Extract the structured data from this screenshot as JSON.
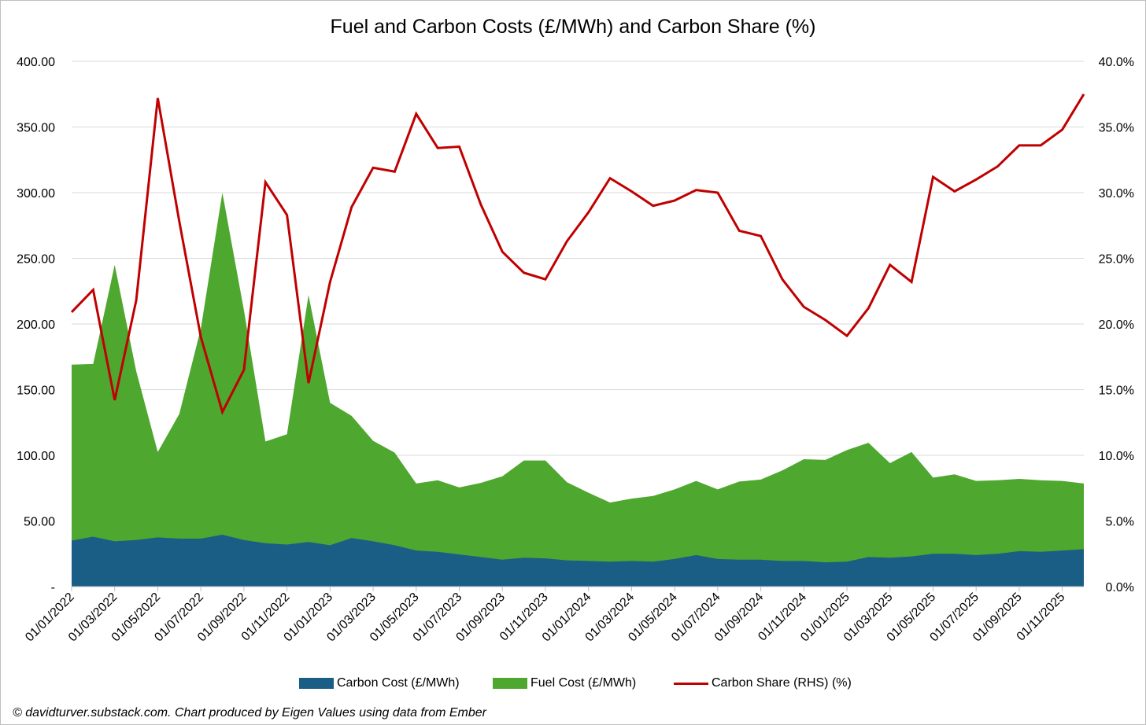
{
  "chart_data": {
    "type": "area",
    "title": "Fuel and Carbon Costs (£/MWh) and Carbon Share (%)",
    "credit": "© davidturver.substack.com. Chart produced by Eigen Values using data from Ember",
    "x": [
      "01/01/2022",
      "01/02/2022",
      "01/03/2022",
      "01/04/2022",
      "01/05/2022",
      "01/06/2022",
      "01/07/2022",
      "01/08/2022",
      "01/09/2022",
      "01/10/2022",
      "01/11/2022",
      "01/12/2022",
      "01/01/2023",
      "01/02/2023",
      "01/03/2023",
      "01/04/2023",
      "01/05/2023",
      "01/06/2023",
      "01/07/2023",
      "01/08/2023",
      "01/09/2023",
      "01/10/2023",
      "01/11/2023",
      "01/12/2023",
      "01/01/2024",
      "01/02/2024",
      "01/03/2024",
      "01/04/2024",
      "01/05/2024",
      "01/06/2024",
      "01/07/2024",
      "01/08/2024",
      "01/09/2024",
      "01/10/2024",
      "01/11/2024",
      "01/12/2024",
      "01/01/2025",
      "01/02/2025",
      "01/03/2025",
      "01/04/2025",
      "01/05/2025",
      "01/06/2025",
      "01/07/2025",
      "01/08/2025",
      "01/09/2025",
      "01/10/2025",
      "01/11/2025",
      "01/12/2025"
    ],
    "x_tick_labels": [
      "01/01/2022",
      "01/03/2022",
      "01/05/2022",
      "01/07/2022",
      "01/09/2022",
      "01/11/2022",
      "01/01/2023",
      "01/03/2023",
      "01/05/2023",
      "01/07/2023",
      "01/09/2023",
      "01/11/2023",
      "01/01/2024",
      "01/03/2024",
      "01/05/2024",
      "01/07/2024",
      "01/09/2024",
      "01/11/2024",
      "01/01/2025",
      "01/03/2025",
      "01/05/2025",
      "01/07/2025",
      "01/09/2025",
      "01/11/2025"
    ],
    "series": [
      {
        "name": "Carbon Cost (£/MWh)",
        "axis": "left",
        "kind": "stacked-area",
        "color": "#1a5e86",
        "values": [
          35,
          38,
          34.5,
          35.5,
          37.5,
          36.5,
          36.5,
          39.5,
          35.5,
          33,
          32,
          34,
          31.5,
          37,
          34.5,
          31.5,
          27.5,
          26.5,
          24.5,
          22.5,
          20.5,
          22,
          21.5,
          20,
          19.5,
          19,
          19.5,
          19,
          21,
          24,
          21,
          20.5,
          20.5,
          19.5,
          19.5,
          18.5,
          19,
          22.5,
          22,
          23,
          25,
          25,
          24,
          25,
          27,
          26.5,
          27.5,
          28.5
        ]
      },
      {
        "name": "Fuel Cost (£/MWh)",
        "axis": "left",
        "kind": "stacked-area",
        "color": "#4ea72e",
        "values": [
          134,
          131.5,
          210.5,
          128.5,
          65,
          95,
          160,
          260.5,
          175,
          77.5,
          84,
          188,
          108.5,
          93,
          76.5,
          70.5,
          51,
          54.5,
          51,
          56.5,
          63.5,
          74,
          74.5,
          59.5,
          52,
          45,
          47.5,
          50,
          53,
          56.5,
          53,
          59.5,
          61,
          69,
          77.5,
          78,
          85,
          87,
          72,
          79.5,
          58,
          60.5,
          56.5,
          56,
          55,
          54.5,
          53,
          50
        ]
      },
      {
        "name": "Carbon Share (RHS) (%)",
        "axis": "right",
        "kind": "line",
        "color": "#c00000",
        "values": [
          20.9,
          22.6,
          14.2,
          21.8,
          37.2,
          27.8,
          19,
          13.3,
          16.5,
          30.8,
          28.3,
          15.5,
          23.2,
          28.9,
          31.9,
          31.6,
          36,
          33.4,
          33.5,
          29.1,
          25.5,
          23.9,
          23.4,
          26.3,
          28.5,
          31.1,
          30.1,
          29,
          29.4,
          30.2,
          30,
          27.1,
          26.7,
          23.4,
          21.3,
          20.3,
          19.1,
          21.2,
          24.5,
          23.2,
          31.2,
          30.1,
          31,
          32,
          33.6,
          33.6,
          34.8,
          37.5
        ]
      }
    ],
    "y_left": {
      "range": [
        0,
        400
      ],
      "ticks": [
        "-",
        "50.00",
        "100.00",
        "150.00",
        "200.00",
        "250.00",
        "300.00",
        "350.00",
        "400.00"
      ]
    },
    "y_right": {
      "range": [
        0,
        40
      ],
      "ticks": [
        "0.0%",
        "5.0%",
        "10.0%",
        "15.0%",
        "20.0%",
        "25.0%",
        "30.0%",
        "35.0%",
        "40.0%"
      ]
    },
    "grid": true,
    "legend_position": "bottom"
  }
}
